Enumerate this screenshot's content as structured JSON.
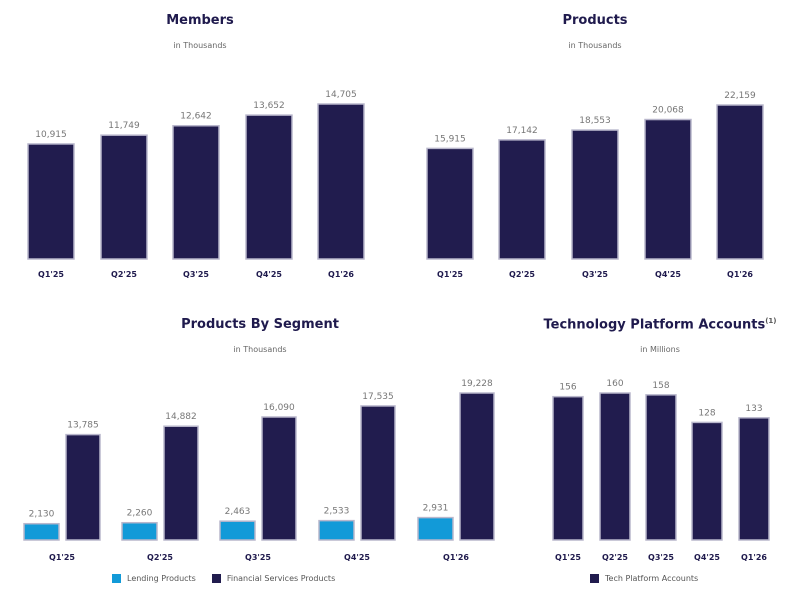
{
  "colors": {
    "navy": "#211c4e",
    "blue": "#129ad8"
  },
  "chart_data": [
    {
      "type": "bar",
      "title": "Members",
      "subtitle": "in Thousands",
      "categories": [
        "Q1'25",
        "Q2'25",
        "Q3'25",
        "Q4'25",
        "Q1'26"
      ],
      "series": [
        {
          "values": [
            10915,
            11749,
            12642,
            13652,
            14705
          ],
          "labels": [
            "10,915",
            "11,749",
            "12,642",
            "13,652",
            "14,705"
          ],
          "color": "#211c4e"
        }
      ]
    },
    {
      "type": "bar",
      "title": "Products",
      "subtitle": "in Thousands",
      "categories": [
        "Q1'25",
        "Q2'25",
        "Q3'25",
        "Q4'25",
        "Q1'26"
      ],
      "series": [
        {
          "values": [
            15915,
            17142,
            18553,
            20068,
            22159
          ],
          "labels": [
            "15,915",
            "17,142",
            "18,553",
            "20,068",
            "22,159"
          ],
          "color": "#211c4e"
        }
      ]
    },
    {
      "type": "bar",
      "title": "Products By Segment",
      "subtitle": "in Thousands",
      "categories": [
        "Q1'25",
        "Q2'25",
        "Q3'25",
        "Q4'25",
        "Q1'26"
      ],
      "legend": "bottom",
      "series": [
        {
          "name": "Lending Products",
          "values": [
            2130,
            2260,
            2463,
            2533,
            2931
          ],
          "labels": [
            "2,130",
            "2,260",
            "2,463",
            "2,533",
            "2,931"
          ],
          "color": "#129ad8"
        },
        {
          "name": "Financial Services Products",
          "values": [
            13785,
            14882,
            16090,
            17535,
            19228
          ],
          "labels": [
            "13,785",
            "14,882",
            "16,090",
            "17,535",
            "19,228"
          ],
          "color": "#211c4e"
        }
      ]
    },
    {
      "type": "bar",
      "title": "Technology Platform Accounts",
      "title_footnote": "(1)",
      "subtitle": "in Millions",
      "categories": [
        "Q1'25",
        "Q2'25",
        "Q3'25",
        "Q4'25",
        "Q1'26"
      ],
      "legend": "bottom",
      "series": [
        {
          "name": "Tech Platform Accounts",
          "values": [
            156,
            160,
            158,
            128,
            133
          ],
          "labels": [
            "156",
            "160",
            "158",
            "128",
            "133"
          ],
          "color": "#211c4e"
        }
      ]
    }
  ]
}
